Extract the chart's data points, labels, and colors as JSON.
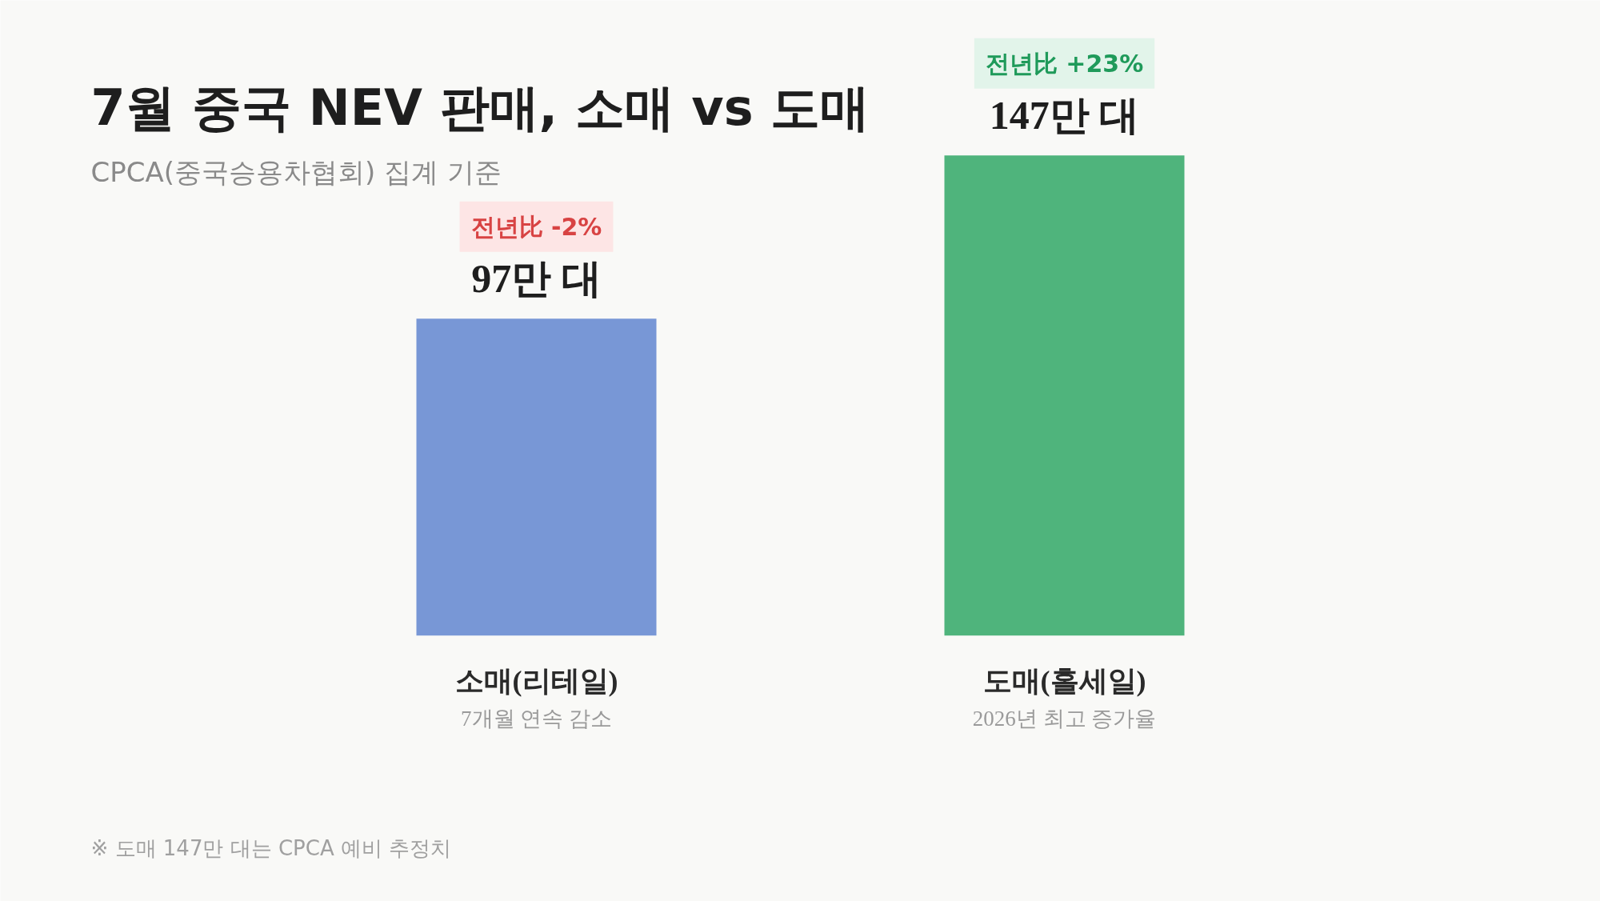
{
  "chart_data": {
    "type": "bar",
    "title": "7월 중국 NEV 판매, 소매 vs 도매",
    "subtitle": "CPCA(중국승용차협회) 집계 기준",
    "categories": [
      "소매(리테일)",
      "도매(홀세일)"
    ],
    "values": [
      97,
      147
    ],
    "colors": [
      "#7897d6",
      "#4fb47c"
    ],
    "value_labels": [
      "97만 대",
      "147만 대"
    ],
    "annotations": [
      "전년比 -2%",
      "전년比 +23%",
      "7개월 연속 감소",
      "2026년 최고 증가율",
      "※ 도매 147만 대는 CPCA 예비 추정치"
    ]
  }
}
